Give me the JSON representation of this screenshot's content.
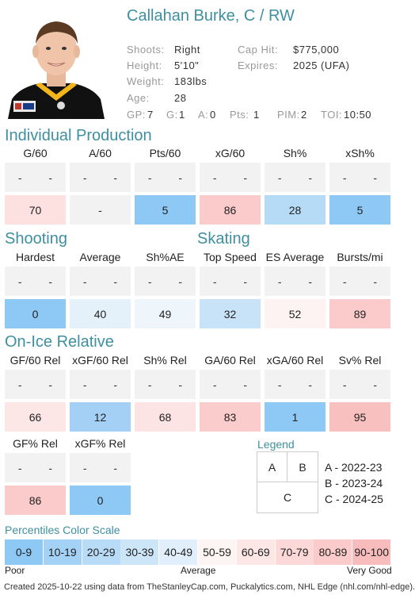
{
  "player": {
    "name": "Callahan Burke, C / RW",
    "shoots_label": "Shoots:",
    "shoots": "Right",
    "height_label": "Height:",
    "height": "5'10\"",
    "weight_label": "Weight:",
    "weight": "183lbs",
    "age_label": "Age:",
    "age": "28",
    "cap_label": "Cap Hit:",
    "cap": "$775,000",
    "expires_label": "Expires:",
    "expires": "2025 (UFA)"
  },
  "stats": {
    "gp_label": "GP:",
    "gp": "7",
    "g_label": "G:",
    "g": "1",
    "a_label": "A:",
    "a": "0",
    "pts_label": "Pts:",
    "pts": "1",
    "pim_label": "PIM:",
    "pim": "2",
    "toi_label": "TOI:",
    "toi": "10:50"
  },
  "colors": {
    "blue_dark": "#8ec8f4",
    "blue_mid": "#b8dcf6",
    "blue_light": "#d6ebfa",
    "blue_pale": "#e8f3fc",
    "red_pale": "#fdf0f0",
    "red_light": "#fde2e2",
    "red_mid": "#fbd0d0",
    "red_dark": "#f9c0c0",
    "neutral": "#f2f2f2",
    "accent": "#3e8fa0"
  },
  "sections": {
    "individual": {
      "title": "Individual Production",
      "metrics": [
        {
          "label": "G/60",
          "a": "-",
          "b": "-",
          "c": "70",
          "color": "#fde0e0"
        },
        {
          "label": "A/60",
          "a": "-",
          "b": "-",
          "c": "-",
          "color": "#f2f2f2"
        },
        {
          "label": "Pts/60",
          "a": "-",
          "b": "-",
          "c": "5",
          "color": "#8ec8f4"
        },
        {
          "label": "xG/60",
          "a": "-",
          "b": "-",
          "c": "86",
          "color": "#fbcaca"
        },
        {
          "label": "Sh%",
          "a": "-",
          "b": "-",
          "c": "28",
          "color": "#b6dbf6"
        },
        {
          "label": "xSh%",
          "a": "-",
          "b": "-",
          "c": "5",
          "color": "#8ec8f4"
        }
      ]
    },
    "shooting": {
      "title": "Shooting",
      "metrics": [
        {
          "label": "Hardest",
          "a": "-",
          "b": "-",
          "c": "0",
          "color": "#8ec8f4"
        },
        {
          "label": "Average",
          "a": "-",
          "b": "-",
          "c": "40",
          "color": "#e4f1fb"
        },
        {
          "label": "Sh%AE",
          "a": "-",
          "b": "-",
          "c": "49",
          "color": "#eef6fc"
        }
      ]
    },
    "skating": {
      "title": "Skating",
      "metrics": [
        {
          "label": "Top Speed",
          "a": "-",
          "b": "-",
          "c": "32",
          "color": "#c8e3f8"
        },
        {
          "label": "ES Average",
          "a": "-",
          "b": "-",
          "c": "52",
          "color": "#fdf3f3"
        },
        {
          "label": "Bursts/mi",
          "a": "-",
          "b": "-",
          "c": "89",
          "color": "#fbcaca"
        }
      ]
    },
    "onice": {
      "title": "On-Ice Relative",
      "metrics": [
        {
          "label": "GF/60 Rel",
          "a": "-",
          "b": "-",
          "c": "66",
          "color": "#fde6e6"
        },
        {
          "label": "xGF/60 Rel",
          "a": "-",
          "b": "-",
          "c": "12",
          "color": "#a4d0f5"
        },
        {
          "label": "Sh% Rel",
          "a": "-",
          "b": "-",
          "c": "68",
          "color": "#fde4e4"
        },
        {
          "label": "GA/60 Rel",
          "a": "-",
          "b": "-",
          "c": "83",
          "color": "#fbcccc"
        },
        {
          "label": "xGA/60 Rel",
          "a": "-",
          "b": "-",
          "c": "1",
          "color": "#8ec8f4"
        },
        {
          "label": "Sv% Rel",
          "a": "-",
          "b": "-",
          "c": "95",
          "color": "#f9c0c0"
        }
      ]
    },
    "onice2": {
      "metrics": [
        {
          "label": "GF% Rel",
          "a": "-",
          "b": "-",
          "c": "86",
          "color": "#fbcaca"
        },
        {
          "label": "xGF% Rel",
          "a": "-",
          "b": "-",
          "c": "0",
          "color": "#8ec8f4"
        }
      ]
    }
  },
  "legend": {
    "title": "Legend",
    "cell_a": "A",
    "cell_b": "B",
    "cell_c": "C",
    "line_a": "A - 2022-23",
    "line_b": "B - 2023-24",
    "line_c": "C - 2024-25"
  },
  "scale": {
    "title": "Percentiles Color Scale",
    "buckets": [
      {
        "label": "0-9",
        "color": "#8ec8f4"
      },
      {
        "label": "10-19",
        "color": "#a4d2f6"
      },
      {
        "label": "20-29",
        "color": "#b8dcf7"
      },
      {
        "label": "30-39",
        "color": "#cce6f8"
      },
      {
        "label": "40-49",
        "color": "#e0effb"
      },
      {
        "label": "50-59",
        "color": "#fdf4f4"
      },
      {
        "label": "60-69",
        "color": "#fde6e6"
      },
      {
        "label": "70-79",
        "color": "#fcd8d8"
      },
      {
        "label": "80-89",
        "color": "#fbcaca"
      },
      {
        "label": "90-100",
        "color": "#f9bcbc"
      }
    ],
    "poor": "Poor",
    "average": "Average",
    "very_good": "Very Good"
  },
  "footer": "Created 2025-10-22 using data from TheStanleyCap.com, Puckalytics.com, NHL Edge (nhl.com/nhl-edge)."
}
